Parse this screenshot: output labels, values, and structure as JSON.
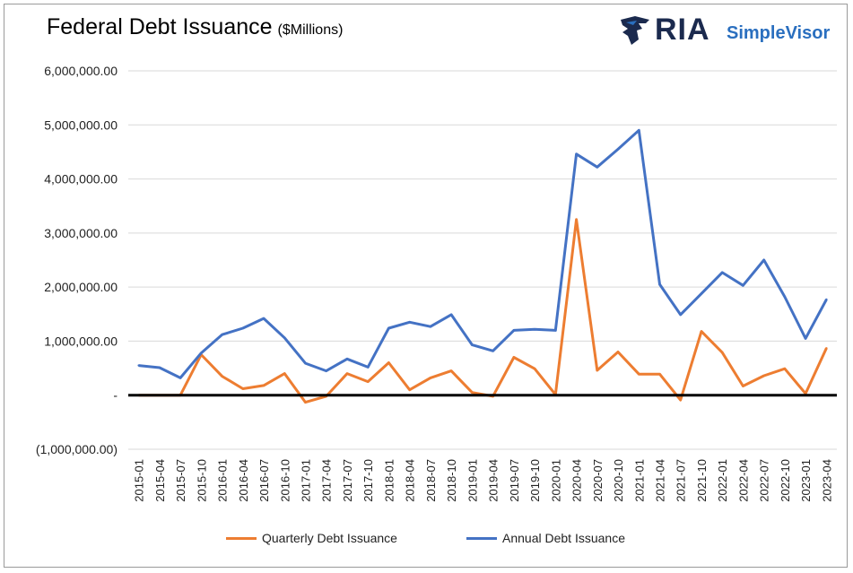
{
  "title": "Federal Debt Issuance",
  "subtitle": "($Millions)",
  "logo": {
    "brand": "RIA",
    "product": "SimpleVisor",
    "icon": "eagle-icon"
  },
  "chart_data": {
    "type": "line",
    "x": [
      "2015-01",
      "2015-04",
      "2015-07",
      "2015-10",
      "2016-01",
      "2016-04",
      "2016-07",
      "2016-10",
      "2017-01",
      "2017-04",
      "2017-07",
      "2017-10",
      "2018-01",
      "2018-04",
      "2018-07",
      "2018-10",
      "2019-01",
      "2019-04",
      "2019-07",
      "2019-10",
      "2020-01",
      "2020-04",
      "2020-07",
      "2020-10",
      "2021-01",
      "2021-04",
      "2021-07",
      "2021-10",
      "2022-01",
      "2022-04",
      "2022-07",
      "2022-10",
      "2023-01",
      "2023-04"
    ],
    "y_tick_labels": [
      "6,000,000.00",
      "5,000,000.00",
      "4,000,000.00",
      "3,000,000.00",
      "2,000,000.00",
      "1,000,000.00",
      "-",
      "(1,000,000.00)"
    ],
    "y_tick_values": [
      6000000,
      5000000,
      4000000,
      3000000,
      2000000,
      1000000,
      0,
      -1000000
    ],
    "ylim": [
      -1000000,
      6000000
    ],
    "grid": true,
    "legend_position": "bottom",
    "series": [
      {
        "name": "Quarterly Debt Issuance",
        "color": "#ed7d31",
        "values": [
          0,
          0,
          0,
          750000,
          350000,
          120000,
          180000,
          400000,
          -130000,
          -20000,
          400000,
          250000,
          600000,
          100000,
          320000,
          450000,
          50000,
          -20000,
          700000,
          490000,
          10000,
          3250000,
          460000,
          800000,
          390000,
          390000,
          -90000,
          1180000,
          790000,
          170000,
          360000,
          490000,
          30000,
          870000
        ]
      },
      {
        "name": "Annual Debt Issuance",
        "color": "#4472c4",
        "values": [
          550000,
          510000,
          320000,
          780000,
          1120000,
          1240000,
          1420000,
          1060000,
          590000,
          450000,
          670000,
          520000,
          1240000,
          1350000,
          1270000,
          1490000,
          930000,
          820000,
          1200000,
          1220000,
          1200000,
          4460000,
          4220000,
          4550000,
          4900000,
          2050000,
          1490000,
          1880000,
          2270000,
          2030000,
          2500000,
          1820000,
          1050000,
          1770000
        ]
      }
    ]
  }
}
